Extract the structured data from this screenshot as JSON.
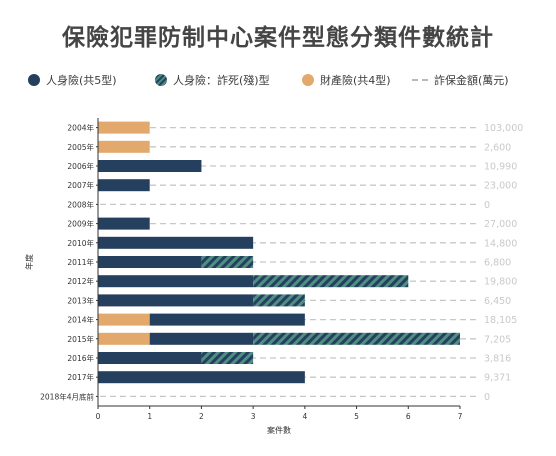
{
  "chart_data": {
    "type": "bar",
    "orientation": "horizontal",
    "title": "保險犯罪防制中心案件型態分類件數統計",
    "xlabel": "案件數",
    "ylabel": "年度",
    "xlim": [
      0,
      7
    ],
    "x_ticks": [
      "0",
      "1",
      "2",
      "3",
      "4",
      "5",
      "6",
      "7"
    ],
    "grid": false,
    "legend_position": "top",
    "categories": [
      "2004年",
      "2005年",
      "2006年",
      "2007年",
      "2008年",
      "2009年",
      "2010年",
      "2011年",
      "2012年",
      "2013年",
      "2014年",
      "2015年",
      "2016年",
      "2017年",
      "2018年4月底前"
    ],
    "series": [
      {
        "name": "人身險(共5型)",
        "color": "#253f5f",
        "pattern": "solid",
        "values": [
          0,
          0,
          2,
          1,
          0,
          1,
          3,
          2,
          3,
          3,
          3,
          2,
          2,
          4,
          0
        ]
      },
      {
        "name": "人身險：詐死(殘)型",
        "color": "#253f5f",
        "pattern": "hatched",
        "values": [
          0,
          0,
          0,
          0,
          0,
          0,
          0,
          1,
          3,
          1,
          0,
          4,
          1,
          0,
          0
        ]
      },
      {
        "name": "財產險(共4型)",
        "color": "#e3a86b",
        "pattern": "solid",
        "values": [
          1,
          1,
          0,
          0,
          0,
          0,
          0,
          0,
          0,
          0,
          1,
          1,
          0,
          0,
          0
        ]
      }
    ],
    "fraud_amount": {
      "name": "詐保金額(萬元)",
      "labels": [
        "103,000",
        "2,600",
        "10,990",
        "23,000",
        "0",
        "27,000",
        "14,800",
        "6,800",
        "19,800",
        "6,450",
        "18,105",
        "7,205",
        "3,816",
        "9,371",
        "0"
      ]
    }
  },
  "colors": {
    "dark_navy": "#253f5f",
    "hatch_teal": "#4f8f83",
    "orange": "#e3a86b",
    "dash_gray": "#c8c8c8",
    "amount_text": "#c9c9c9"
  }
}
